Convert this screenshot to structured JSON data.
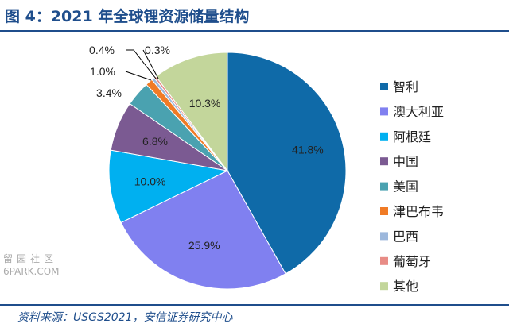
{
  "title": "图 4：2021 年全球锂资源储量结构",
  "source": "资料来源：USGS2021，安信证券研究中心",
  "watermark": [
    "留园社区",
    "6PARK.COM"
  ],
  "chart_data": {
    "type": "pie",
    "start_angle_deg": 0,
    "direction": "clockwise",
    "slices": [
      {
        "label": "智利",
        "value": 41.8,
        "display": "41.8%",
        "color": "#0f6aa8"
      },
      {
        "label": "澳大利亚",
        "value": 25.9,
        "display": "25.9%",
        "color": "#8080f0"
      },
      {
        "label": "阿根廷",
        "value": 10.0,
        "display": "10.0%",
        "color": "#00b0f0"
      },
      {
        "label": "中国",
        "value": 6.8,
        "display": "6.8%",
        "color": "#7b5a92"
      },
      {
        "label": "美国",
        "value": 3.4,
        "display": "3.4%",
        "color": "#4aa2b0"
      },
      {
        "label": "津巴布韦",
        "value": 1.0,
        "display": "1.0%",
        "color": "#f07b26"
      },
      {
        "label": "巴西",
        "value": 0.4,
        "display": "0.4%",
        "color": "#9db8dc"
      },
      {
        "label": "葡萄牙",
        "value": 0.3,
        "display": "0.3%",
        "color": "#e88c86"
      },
      {
        "label": "其他",
        "value": 10.3,
        "display": "10.3%",
        "color": "#c3d69b"
      }
    ],
    "legend_position": "right"
  }
}
